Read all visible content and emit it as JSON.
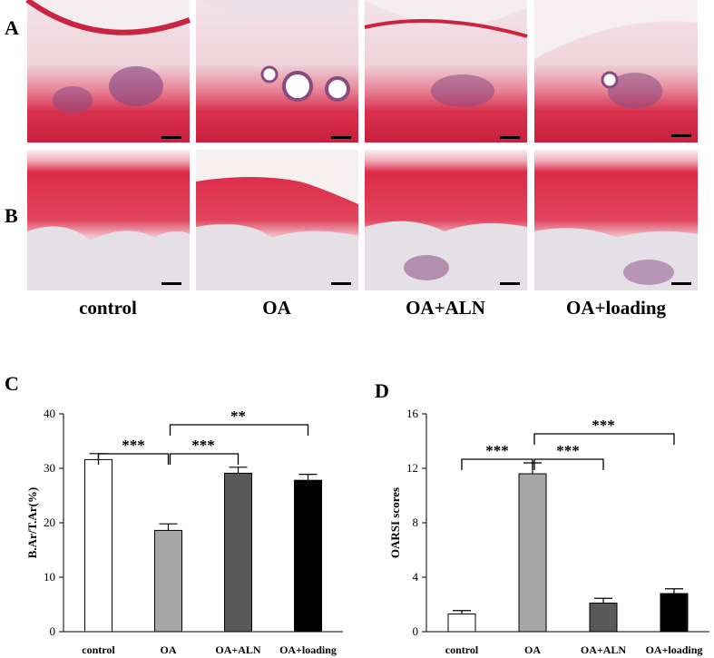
{
  "figure": {
    "panel_letters": [
      "A",
      "B",
      "C",
      "D"
    ],
    "group_labels": [
      "control",
      "OA",
      "OA+ALN",
      "OA+loading"
    ],
    "micrographs": [
      {
        "row": "A",
        "group": "control"
      },
      {
        "row": "A",
        "group": "OA"
      },
      {
        "row": "A",
        "group": "OA+ALN"
      },
      {
        "row": "A",
        "group": "OA+loading"
      },
      {
        "row": "B",
        "group": "control"
      },
      {
        "row": "B",
        "group": "OA"
      },
      {
        "row": "B",
        "group": "OA+ALN"
      },
      {
        "row": "B",
        "group": "OA+loading"
      }
    ],
    "colors": {
      "stain_red": "#d8243f",
      "stain_pink": "#ecb7c0",
      "marrow_purple": "#8a4a82",
      "background": "#f1ecef"
    }
  },
  "chart_data": [
    {
      "type": "bar",
      "panel": "C",
      "title": "",
      "xlabel": "",
      "ylabel": "B.Ar/T.Ar(%)",
      "categories": [
        "control",
        "OA",
        "OA+ALN",
        "OA+loading"
      ],
      "values": [
        31.6,
        18.6,
        29.1,
        27.8
      ],
      "errors": [
        1.1,
        1.2,
        1.1,
        1.1
      ],
      "bar_colors": [
        "#ffffff",
        "#a6a6a6",
        "#595959",
        "#000000"
      ],
      "ylim": [
        0,
        40
      ],
      "yticks": [
        0,
        10,
        20,
        30,
        40
      ],
      "ytick_labels": [
        "0",
        "10",
        "20",
        "30",
        "40"
      ],
      "grid": false,
      "significance": [
        {
          "from": 0,
          "to": 1,
          "label": "***"
        },
        {
          "from": 1,
          "to": 2,
          "label": "***"
        },
        {
          "from": 1,
          "to": 3,
          "label": "**"
        }
      ]
    },
    {
      "type": "bar",
      "panel": "D",
      "title": "",
      "xlabel": "",
      "ylabel": "OARSI  scores",
      "categories": [
        "control",
        "OA",
        "OA+ALN",
        "OA+loading"
      ],
      "values": [
        1.3,
        11.6,
        2.1,
        2.8
      ],
      "errors": [
        0.25,
        0.8,
        0.35,
        0.35
      ],
      "bar_colors": [
        "#ffffff",
        "#a6a6a6",
        "#595959",
        "#000000"
      ],
      "ylim": [
        0,
        16
      ],
      "yticks": [
        0,
        4,
        8,
        12,
        16
      ],
      "ytick_labels": [
        "0",
        "4",
        "8",
        "12",
        "16"
      ],
      "grid": false,
      "significance": [
        {
          "from": 0,
          "to": 1,
          "label": "***"
        },
        {
          "from": 1,
          "to": 2,
          "label": "***"
        },
        {
          "from": 1,
          "to": 3,
          "label": "***"
        }
      ]
    }
  ]
}
